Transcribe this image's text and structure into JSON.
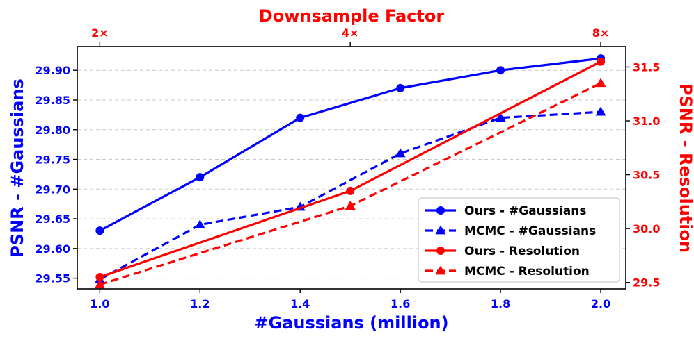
{
  "chart_data": {
    "type": "line",
    "top_axis": {
      "label": "Downsample Factor",
      "ticks": [
        {
          "label": "2×",
          "x": 1.0
        },
        {
          "label": "4×",
          "x": 1.5
        },
        {
          "label": "8×",
          "x": 2.0
        }
      ],
      "color": "#ff0000"
    },
    "bottom_axis": {
      "label": "#Gaussians (million)",
      "ticks": [
        "1.0",
        "1.2",
        "1.4",
        "1.6",
        "1.8",
        "2.0"
      ],
      "range": [
        0.955,
        2.05
      ],
      "color": "#0000ff"
    },
    "left_axis": {
      "label": "PSNR - #Gaussians",
      "ticks": [
        "29.55",
        "29.60",
        "29.65",
        "29.70",
        "29.75",
        "29.80",
        "29.85",
        "29.90"
      ],
      "range": [
        29.532,
        29.94
      ],
      "color": "#0000ff"
    },
    "right_axis": {
      "label": "PSNR - Resolution",
      "ticks": [
        "29.5",
        "30.0",
        "30.5",
        "31.0",
        "31.5"
      ],
      "range": [
        29.44,
        31.69
      ],
      "color": "#ff0000"
    },
    "grid": "horizontal-dashed",
    "legend_position": "bottom-right",
    "series": [
      {
        "name": "Ours - #Gaussians",
        "axis": "left",
        "color": "#0000ff",
        "dash": "solid",
        "marker": "circle",
        "x": [
          1.0,
          1.2,
          1.4,
          1.6,
          1.8,
          2.0
        ],
        "y": [
          29.63,
          29.72,
          29.82,
          29.87,
          29.9,
          29.92
        ]
      },
      {
        "name": "MCMC - #Gaussians",
        "axis": "left",
        "color": "#0000ff",
        "dash": "dashed",
        "marker": "triangle",
        "x": [
          1.0,
          1.2,
          1.4,
          1.6,
          1.8,
          2.0
        ],
        "y": [
          29.548,
          29.64,
          29.67,
          29.76,
          29.82,
          29.83
        ]
      },
      {
        "name": "Ours - Resolution",
        "axis": "right",
        "color": "#ff0000",
        "dash": "solid",
        "marker": "circle",
        "x": [
          1.0,
          1.5,
          2.0
        ],
        "y": [
          29.55,
          30.35,
          31.55
        ]
      },
      {
        "name": "MCMC - Resolution",
        "axis": "right",
        "color": "#ff0000",
        "dash": "dashed",
        "marker": "triangle",
        "x": [
          1.0,
          1.5,
          2.0
        ],
        "y": [
          29.48,
          30.21,
          31.35
        ]
      }
    ]
  }
}
